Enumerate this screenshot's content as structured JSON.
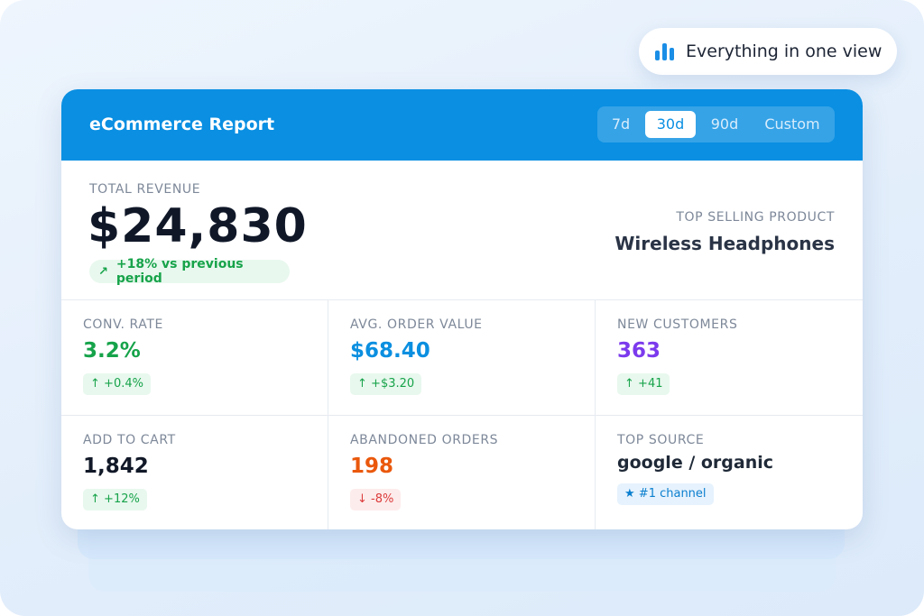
{
  "badge": {
    "icon": "bar-chart-icon",
    "label": "Everything in one view"
  },
  "header": {
    "title": "eCommerce Report",
    "ranges": [
      "7d",
      "30d",
      "90d",
      "Custom"
    ],
    "selected_range": "30d"
  },
  "revenue": {
    "label": "TOTAL REVENUE",
    "value": "$24,830",
    "trend_icon": "trending-up-icon",
    "trend": "+18% vs previous period"
  },
  "top_product": {
    "label": "TOP SELLING PRODUCT",
    "value": "Wireless Headphones"
  },
  "metrics": [
    {
      "label": "CONV. RATE",
      "value": "3.2%",
      "change": "+0.4%",
      "direction": "up",
      "color": "#16a34a"
    },
    {
      "label": "AVG. ORDER VALUE",
      "value": "$68.40",
      "change": "+$3.20",
      "direction": "up",
      "color": "#0b8fe0"
    },
    {
      "label": "NEW CUSTOMERS",
      "value": "363",
      "change": "+41",
      "direction": "up",
      "color": "#7c3aed"
    },
    {
      "label": "ADD TO CART",
      "value": "1,842",
      "change": "+12%",
      "direction": "up",
      "color": "#111827"
    },
    {
      "label": "ABANDONED ORDERS",
      "value": "198",
      "change": "-8%",
      "direction": "down",
      "color": "#ea580c"
    },
    {
      "label": "TOP SOURCE",
      "value": "google / organic",
      "change": "#1 channel",
      "direction": "star",
      "color": "#1f2937"
    }
  ],
  "glyphs": {
    "up": "↑",
    "down": "↓",
    "star": "★",
    "trend": "↗"
  }
}
